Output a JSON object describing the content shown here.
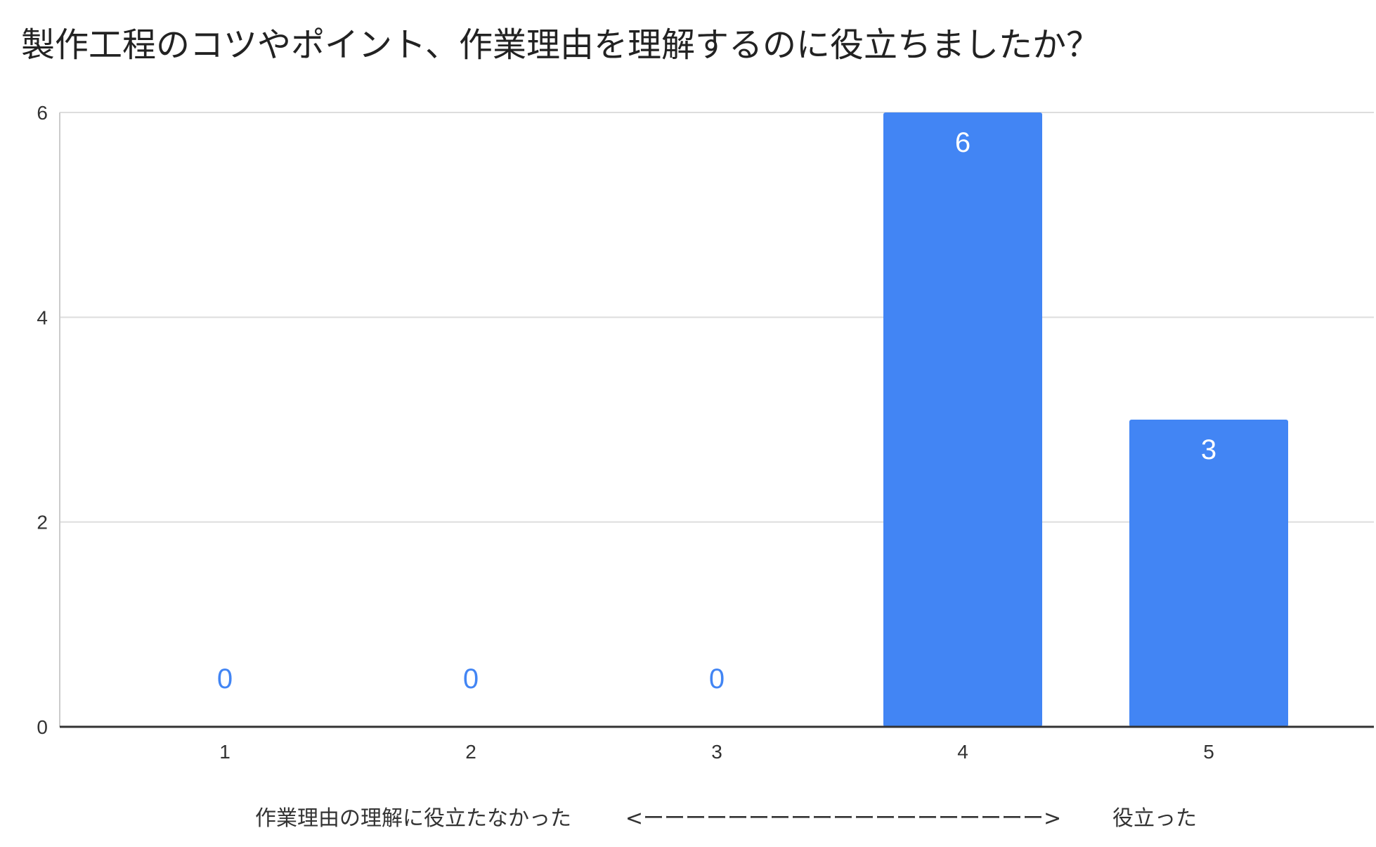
{
  "chart_data": {
    "type": "bar",
    "title": "製作工程のコツやポイント、作業理由を理解するのに役立ちましたか？",
    "categories": [
      "1",
      "2",
      "3",
      "4",
      "5"
    ],
    "values": [
      0,
      0,
      0,
      6,
      3
    ],
    "data_labels": [
      "0",
      "0",
      "0",
      "6",
      "3"
    ],
    "ylim": [
      0,
      6
    ],
    "yticks": [
      "0",
      "2",
      "4",
      "6"
    ],
    "grid": true,
    "legend": "none",
    "xlabel": {
      "left": "作業理由の理解に役立たなかった",
      "middle": "<ーーーーーーーーーーーーーーーーーーー>",
      "right": "役立った"
    },
    "colors": {
      "bar": "#4285f4",
      "grid": "#dddddd",
      "axis": "#333333"
    }
  }
}
